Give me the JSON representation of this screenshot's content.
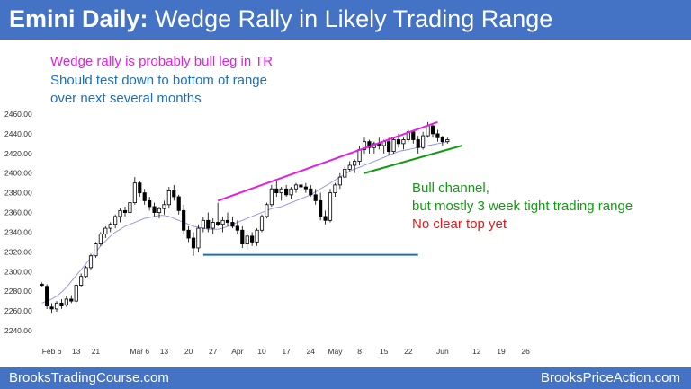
{
  "header": {
    "title_lead": "Emini Daily:",
    "title_rest": " Wedge Rally in Likely Trading Range"
  },
  "annotations": {
    "top_lines": [
      {
        "text": "Wedge rally is probably bull leg in TR",
        "color": "#e020e0"
      },
      {
        "text": "Should test down to bottom of range",
        "color": "#1f6fb5"
      },
      {
        "text": "over next several months",
        "color": "#1f6fb5"
      }
    ],
    "right_lines": [
      {
        "text": "Bull channel,",
        "color": "#139a13"
      },
      {
        "text": "but mostly 3 week tight trading range",
        "color": "#139a13"
      },
      {
        "text": "No clear top yet",
        "color": "#e01a1a"
      }
    ]
  },
  "footer": {
    "left": "BrooksTradingCourse.com",
    "right": "BrooksPriceAction.com"
  },
  "chart_data": {
    "type": "candlestick",
    "title": "",
    "ylim": [
      2240,
      2460
    ],
    "yticks": [
      2240,
      2260,
      2280,
      2300,
      2320,
      2340,
      2360,
      2380,
      2400,
      2420,
      2440,
      2460
    ],
    "ytick_labels": [
      "2240.00",
      "2260.00",
      "2280.00",
      "2300.00",
      "2320.00",
      "2340.00",
      "2360.00",
      "2380.00",
      "2400.00",
      "2420.00",
      "2440.00",
      "2460.00"
    ],
    "xtick_labels": [
      {
        "label": "Feb 6",
        "index": 2
      },
      {
        "label": "13",
        "index": 7
      },
      {
        "label": "21",
        "index": 11
      },
      {
        "label": "Mar 6",
        "index": 20
      },
      {
        "label": "13",
        "index": 25
      },
      {
        "label": "20",
        "index": 30
      },
      {
        "label": "27",
        "index": 35
      },
      {
        "label": "Apr",
        "index": 40
      },
      {
        "label": "10",
        "index": 45
      },
      {
        "label": "17",
        "index": 50
      },
      {
        "label": "24",
        "index": 55
      },
      {
        "label": "May",
        "index": 60
      },
      {
        "label": "8",
        "index": 65
      },
      {
        "label": "15",
        "index": 70
      },
      {
        "label": "22",
        "index": 75
      },
      {
        "label": "Jun",
        "index": 82
      },
      {
        "label": "12",
        "index": 89
      },
      {
        "label": "19",
        "index": 94
      },
      {
        "label": "26",
        "index": 99
      }
    ],
    "candles": [
      [
        2287,
        2289,
        2284,
        2286
      ],
      [
        2285,
        2287,
        2262,
        2265
      ],
      [
        2264,
        2268,
        2258,
        2262
      ],
      [
        2262,
        2270,
        2259,
        2268
      ],
      [
        2268,
        2272,
        2262,
        2265
      ],
      [
        2266,
        2275,
        2264,
        2272
      ],
      [
        2272,
        2276,
        2268,
        2270
      ],
      [
        2270,
        2288,
        2268,
        2286
      ],
      [
        2286,
        2298,
        2284,
        2295
      ],
      [
        2295,
        2306,
        2293,
        2304
      ],
      [
        2304,
        2318,
        2302,
        2316
      ],
      [
        2316,
        2330,
        2314,
        2328
      ],
      [
        2328,
        2340,
        2326,
        2338
      ],
      [
        2338,
        2346,
        2334,
        2344
      ],
      [
        2344,
        2350,
        2340,
        2348
      ],
      [
        2348,
        2358,
        2344,
        2356
      ],
      [
        2356,
        2364,
        2350,
        2362
      ],
      [
        2362,
        2366,
        2356,
        2360
      ],
      [
        2360,
        2372,
        2356,
        2370
      ],
      [
        2370,
        2396,
        2368,
        2390
      ],
      [
        2390,
        2392,
        2376,
        2380
      ],
      [
        2380,
        2384,
        2368,
        2372
      ],
      [
        2372,
        2376,
        2362,
        2366
      ],
      [
        2366,
        2370,
        2356,
        2360
      ],
      [
        2360,
        2366,
        2354,
        2364
      ],
      [
        2364,
        2372,
        2358,
        2368
      ],
      [
        2368,
        2386,
        2364,
        2382
      ],
      [
        2382,
        2388,
        2372,
        2376
      ],
      [
        2376,
        2378,
        2358,
        2362
      ],
      [
        2362,
        2368,
        2338,
        2342
      ],
      [
        2342,
        2346,
        2330,
        2334
      ],
      [
        2334,
        2340,
        2316,
        2324
      ],
      [
        2324,
        2348,
        2320,
        2344
      ],
      [
        2344,
        2356,
        2340,
        2352
      ],
      [
        2352,
        2360,
        2340,
        2344
      ],
      [
        2344,
        2354,
        2338,
        2350
      ],
      [
        2350,
        2370,
        2346,
        2348
      ],
      [
        2348,
        2356,
        2340,
        2352
      ],
      [
        2352,
        2360,
        2346,
        2350
      ],
      [
        2350,
        2356,
        2344,
        2346
      ],
      [
        2346,
        2352,
        2338,
        2342
      ],
      [
        2342,
        2346,
        2324,
        2328
      ],
      [
        2328,
        2338,
        2322,
        2336
      ],
      [
        2336,
        2340,
        2326,
        2330
      ],
      [
        2330,
        2344,
        2326,
        2342
      ],
      [
        2342,
        2358,
        2340,
        2356
      ],
      [
        2356,
        2370,
        2354,
        2368
      ],
      [
        2368,
        2388,
        2366,
        2384
      ],
      [
        2384,
        2392,
        2376,
        2380
      ],
      [
        2380,
        2386,
        2372,
        2384
      ],
      [
        2384,
        2388,
        2376,
        2378
      ],
      [
        2378,
        2386,
        2374,
        2384
      ],
      [
        2384,
        2390,
        2380,
        2388
      ],
      [
        2388,
        2392,
        2384,
        2386
      ],
      [
        2386,
        2390,
        2380,
        2384
      ],
      [
        2384,
        2388,
        2376,
        2378
      ],
      [
        2378,
        2384,
        2368,
        2372
      ],
      [
        2372,
        2380,
        2352,
        2356
      ],
      [
        2356,
        2362,
        2348,
        2352
      ],
      [
        2352,
        2384,
        2350,
        2380
      ],
      [
        2380,
        2390,
        2376,
        2388
      ],
      [
        2388,
        2400,
        2384,
        2396
      ],
      [
        2396,
        2408,
        2394,
        2404
      ],
      [
        2404,
        2412,
        2402,
        2408
      ],
      [
        2408,
        2414,
        2400,
        2412
      ],
      [
        2412,
        2428,
        2408,
        2424
      ],
      [
        2424,
        2436,
        2420,
        2432
      ],
      [
        2432,
        2434,
        2420,
        2426
      ],
      [
        2426,
        2432,
        2420,
        2430
      ],
      [
        2430,
        2436,
        2424,
        2428
      ],
      [
        2428,
        2434,
        2420,
        2432
      ],
      [
        2432,
        2436,
        2418,
        2422
      ],
      [
        2422,
        2436,
        2420,
        2434
      ],
      [
        2434,
        2440,
        2426,
        2430
      ],
      [
        2430,
        2436,
        2424,
        2434
      ],
      [
        2434,
        2444,
        2432,
        2442
      ],
      [
        2442,
        2444,
        2430,
        2434
      ],
      [
        2434,
        2438,
        2420,
        2426
      ],
      [
        2426,
        2442,
        2424,
        2438
      ],
      [
        2438,
        2452,
        2436,
        2448
      ],
      [
        2448,
        2450,
        2436,
        2440
      ],
      [
        2440,
        2444,
        2432,
        2436
      ],
      [
        2436,
        2438,
        2428,
        2432
      ],
      [
        2432,
        2436,
        2430,
        2434
      ]
    ],
    "ema": [
      2268,
      2270,
      2272,
      2275,
      2279,
      2284,
      2290,
      2296,
      2302,
      2308,
      2314,
      2320,
      2326,
      2331,
      2336,
      2340,
      2343,
      2346,
      2348,
      2350,
      2352,
      2354,
      2355,
      2356,
      2357,
      2357,
      2356,
      2354,
      2352,
      2350,
      2348,
      2346,
      2345,
      2344,
      2343,
      2343,
      2343,
      2344,
      2346,
      2348,
      2350,
      2352,
      2354,
      2356,
      2358,
      2360,
      2362,
      2364,
      2365,
      2366,
      2368,
      2370,
      2372,
      2374,
      2376,
      2378,
      2381,
      2384,
      2387,
      2390,
      2393,
      2396,
      2399,
      2402,
      2404,
      2406,
      2408,
      2410,
      2412,
      2414,
      2416,
      2418,
      2420,
      2422,
      2423,
      2424,
      2425,
      2426,
      2427,
      2428,
      2429,
      2430,
      2431,
      2432
    ],
    "overlays": {
      "magenta_wedge_line": {
        "from": [
          36,
          2372
        ],
        "to": [
          81,
          2452
        ],
        "color": "#e020e0"
      },
      "green_channel_line": {
        "from": [
          66,
          2400
        ],
        "to": [
          86,
          2428
        ],
        "color": "#139a13"
      },
      "blue_range_bottom": {
        "from": [
          33,
          2317
        ],
        "to": [
          77,
          2317
        ],
        "color": "#1f6fb5"
      }
    }
  }
}
